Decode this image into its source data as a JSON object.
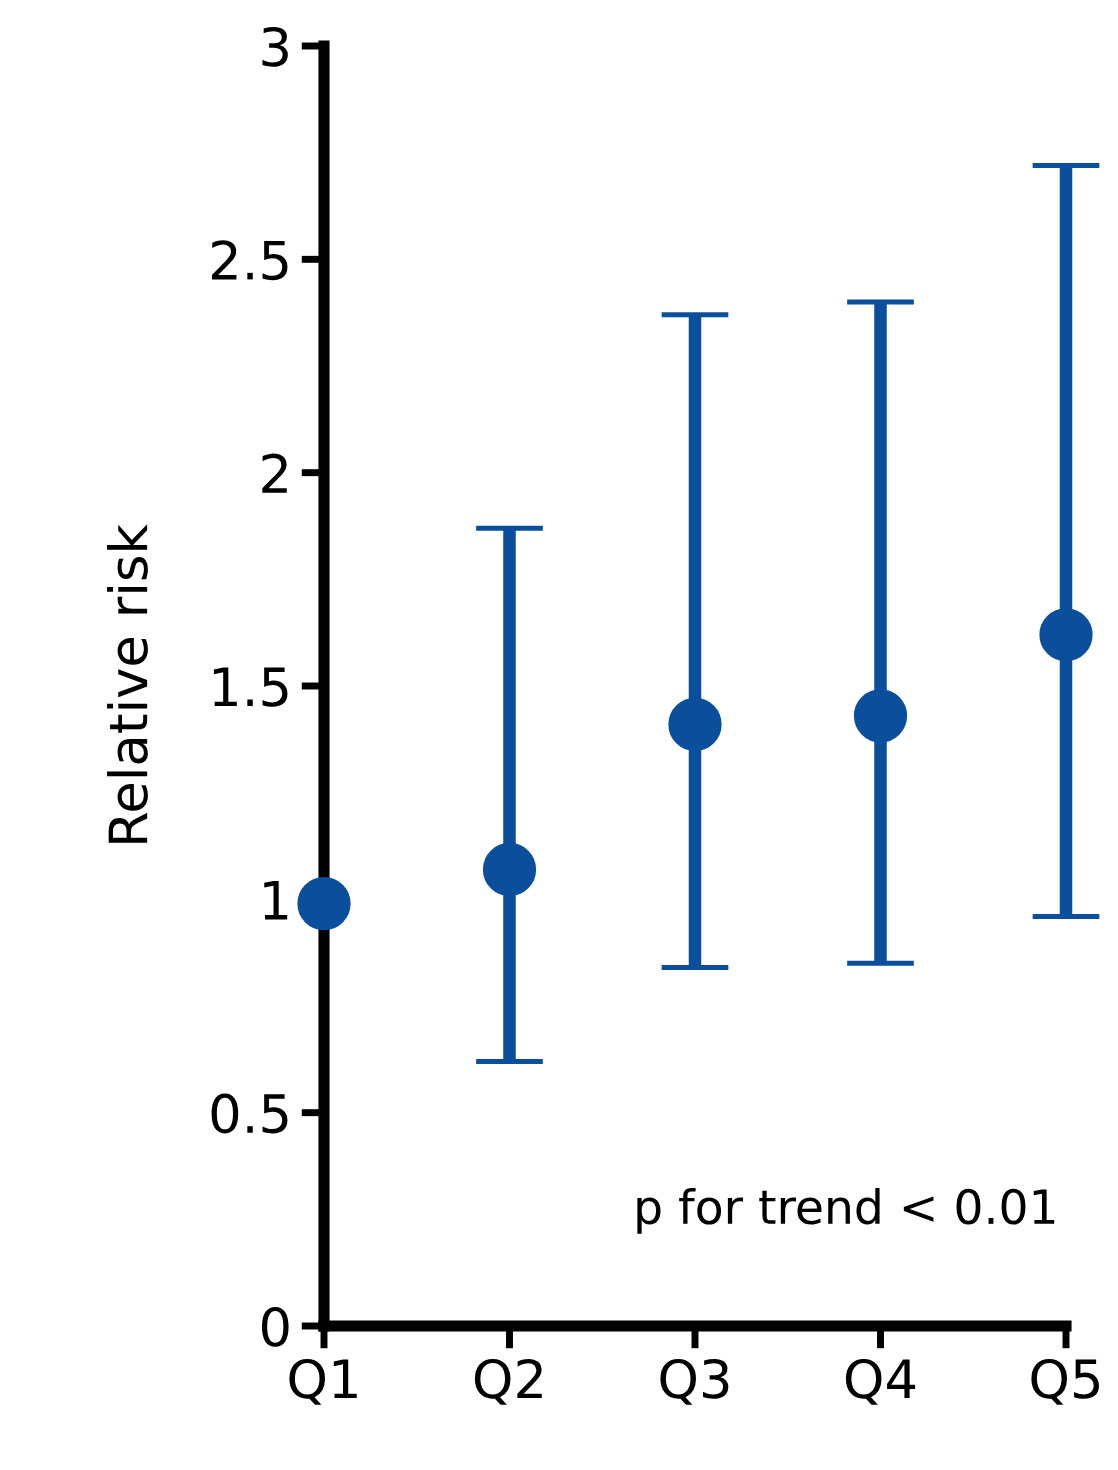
{
  "chart_data": {
    "type": "scatter",
    "ylabel": "Relative risk",
    "categories": [
      "Q1",
      "Q2",
      "Q3",
      "Q4",
      "Q5"
    ],
    "series": [
      {
        "color": "#0b4f9c",
        "values": [
          0.99,
          1.07,
          1.41,
          1.43,
          1.62
        ],
        "errors": [
          null,
          [
            0.62,
            1.87
          ],
          [
            0.84,
            2.37
          ],
          [
            0.85,
            2.4
          ],
          [
            0.96,
            2.72
          ]
        ]
      }
    ],
    "ylim": [
      0,
      3
    ],
    "yticks": [
      0,
      0.5,
      1,
      1.5,
      2,
      2.5,
      3
    ],
    "marker": "circle",
    "grid": false,
    "legend": false,
    "annotations": [
      "p for trend < 0.01"
    ]
  }
}
